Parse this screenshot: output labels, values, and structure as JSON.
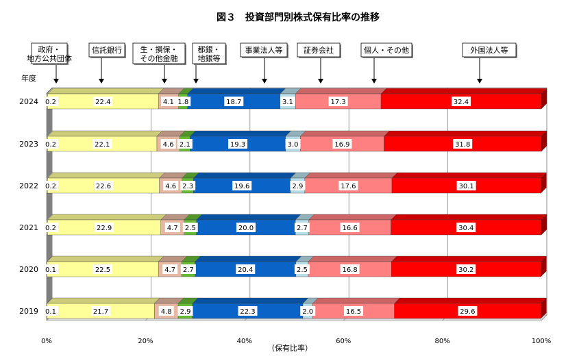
{
  "chart_data": {
    "type": "bar",
    "orientation": "horizontal",
    "stacked": true,
    "percent": true,
    "title": "図３　投資部門別株式保有比率の推移",
    "xlabel": "（保有比率）",
    "ylabel": "年度",
    "xlim": [
      0,
      100
    ],
    "x_ticks": [
      "0%",
      "20%",
      "40%",
      "60%",
      "80%",
      "100%"
    ],
    "grid": true,
    "categories": [
      "2024",
      "2023",
      "2022",
      "2021",
      "2020",
      "2019"
    ],
    "series": [
      {
        "name": "政府・\n地方公共団体",
        "color": "#ffffff",
        "values": [
          0.2,
          0.2,
          0.2,
          0.2,
          0.1,
          0.1
        ]
      },
      {
        "name": "信託銀行",
        "color": "#ffff99",
        "values": [
          22.4,
          22.1,
          22.6,
          22.9,
          22.5,
          21.7
        ]
      },
      {
        "name": "生・損保・\nその他金融",
        "color": "#e6b8a2",
        "values": [
          4.1,
          4.6,
          4.6,
          4.7,
          4.7,
          4.8
        ]
      },
      {
        "name": "都銀・\n地銀等",
        "color": "#66bb33",
        "values": [
          1.8,
          2.1,
          2.3,
          2.5,
          2.7,
          2.9
        ]
      },
      {
        "name": "事業法人等",
        "color": "#0a64c8",
        "values": [
          18.7,
          19.3,
          19.6,
          20.0,
          20.4,
          22.3
        ]
      },
      {
        "name": "証券会社",
        "color": "#b7dde8",
        "values": [
          3.1,
          3.0,
          2.9,
          2.7,
          2.5,
          2.0
        ]
      },
      {
        "name": "個人・その他",
        "color": "#ff8080",
        "values": [
          17.3,
          16.9,
          17.6,
          16.6,
          16.8,
          16.5
        ]
      },
      {
        "name": "外国法人等",
        "color": "#ff0000",
        "values": [
          32.4,
          31.8,
          30.1,
          30.4,
          30.2,
          29.6
        ]
      }
    ],
    "value_labels": [
      [
        "0.2",
        "22.4",
        "4.1",
        "1.8",
        "18.7",
        "3.1",
        "17.3",
        "32.4"
      ],
      [
        "0.2",
        "22.1",
        "4.6",
        "2.1",
        "19.3",
        "3.0",
        "16.9",
        "31.8"
      ],
      [
        "0.2",
        "22.6",
        "4.6",
        "2.3",
        "19.6",
        "2.9",
        "17.6",
        "30.1"
      ],
      [
        "0.2",
        "22.9",
        "4.7",
        "2.5",
        "20.0",
        "2.7",
        "16.6",
        "30.4"
      ],
      [
        "0.1",
        "22.5",
        "4.7",
        "2.7",
        "20.4",
        "2.5",
        "16.8",
        "30.2"
      ],
      [
        "0.1",
        "21.7",
        "4.8",
        "2.9",
        "22.3",
        "2.0",
        "16.5",
        "29.6"
      ]
    ]
  }
}
